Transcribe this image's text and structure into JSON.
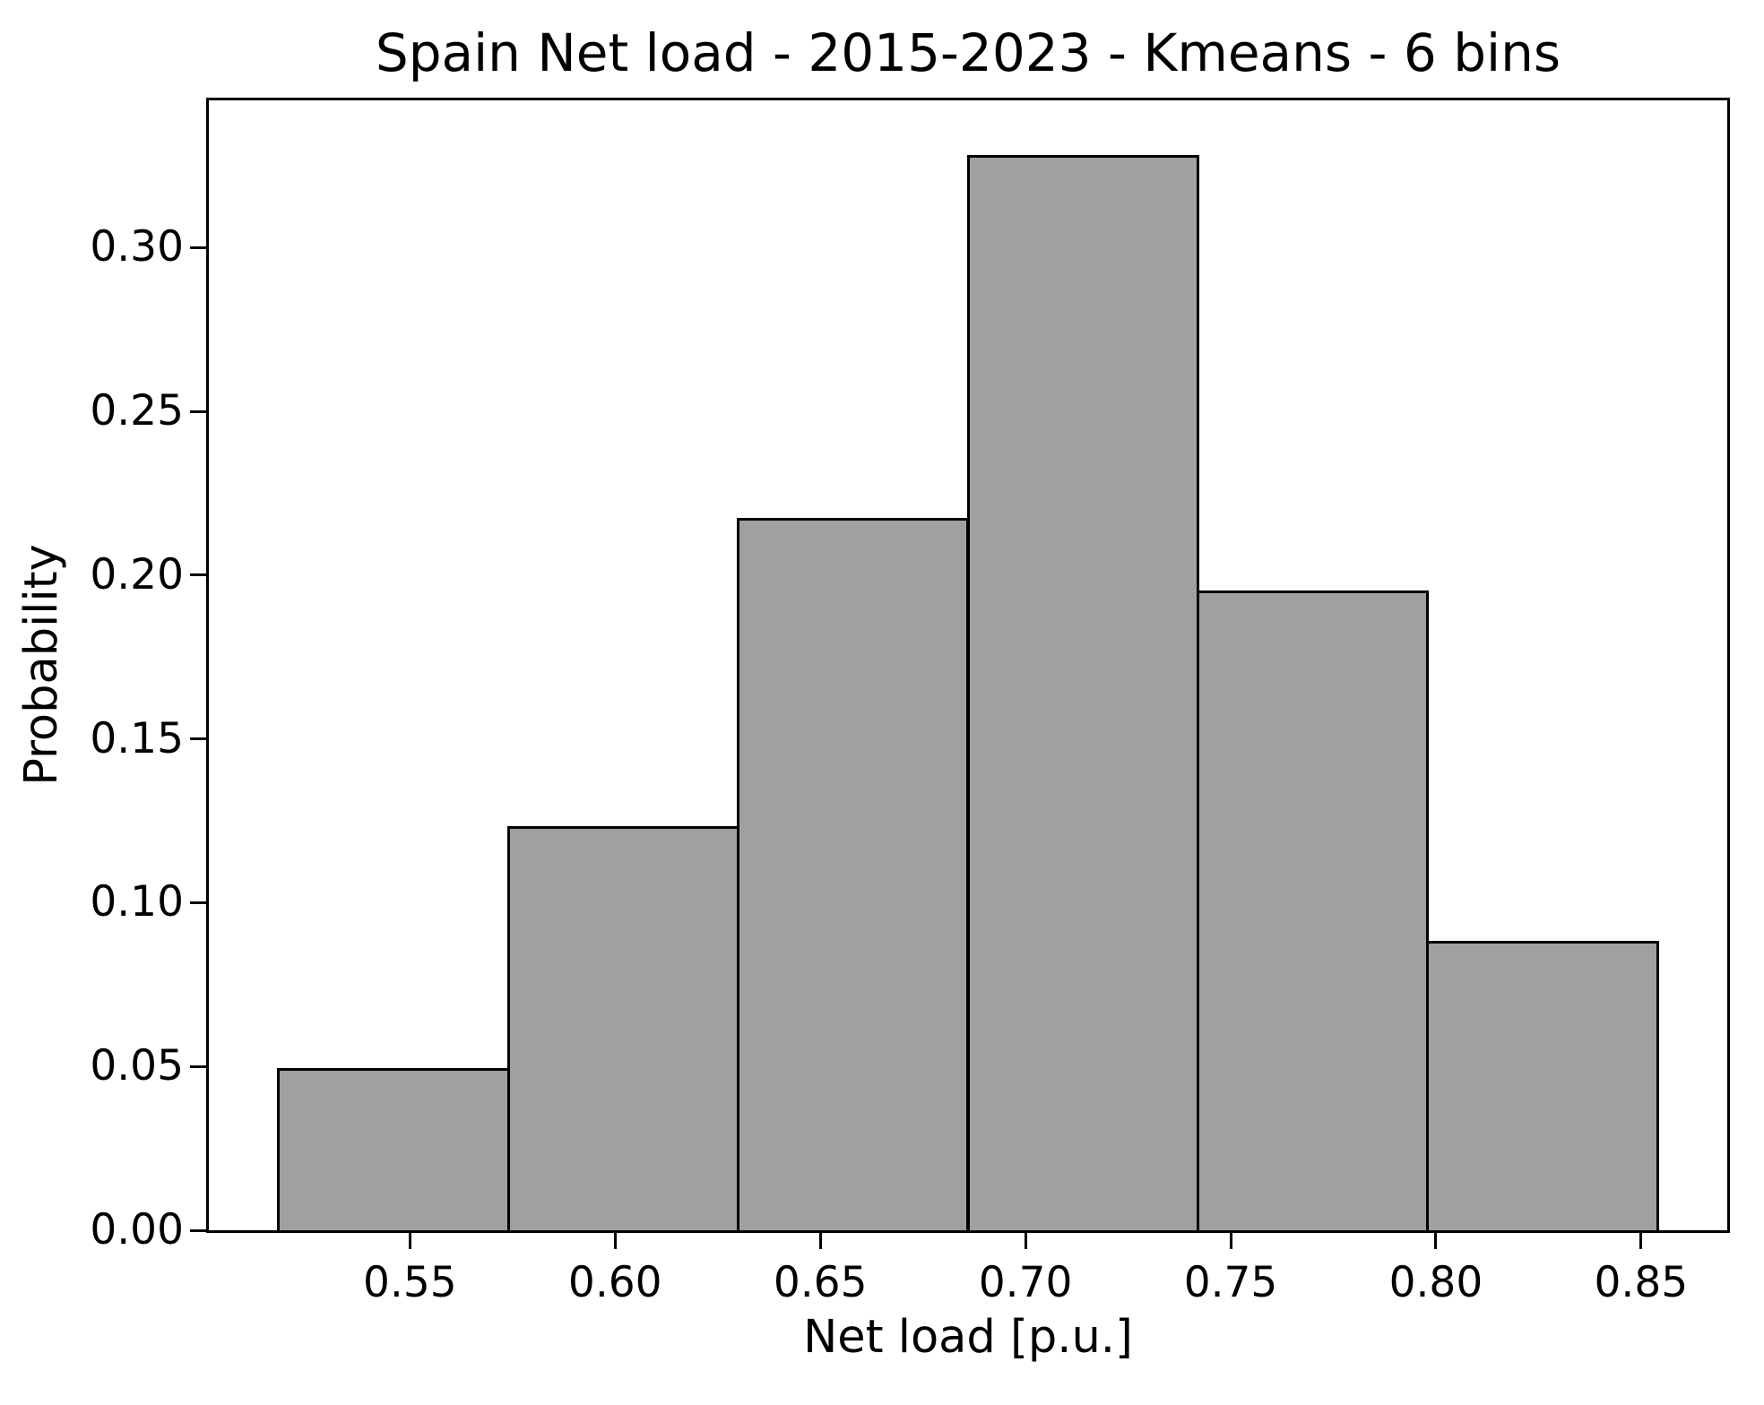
{
  "chart_data": {
    "type": "bar",
    "subtype": "histogram",
    "title": "Spain Net load - 2015-2023 - Kmeans - 6 bins",
    "xlabel": "Net load [p.u.]",
    "ylabel": "Probability",
    "bin_edges": [
      0.518,
      0.574,
      0.63,
      0.686,
      0.742,
      0.798,
      0.854
    ],
    "values": [
      0.049,
      0.123,
      0.217,
      0.328,
      0.195,
      0.088
    ],
    "xlim": [
      0.501,
      0.871
    ],
    "ylim": [
      0.0,
      0.345
    ],
    "xticks": [
      "0.55",
      "0.60",
      "0.65",
      "0.70",
      "0.75",
      "0.80",
      "0.85"
    ],
    "yticks": [
      "0.00",
      "0.05",
      "0.10",
      "0.15",
      "0.20",
      "0.25",
      "0.30"
    ],
    "grid": false,
    "legend_position": "none",
    "bar_fill_color": "#a0a0a0",
    "bar_edge_color": "#000000",
    "axis_color": "#000000",
    "background_color": "#ffffff"
  }
}
